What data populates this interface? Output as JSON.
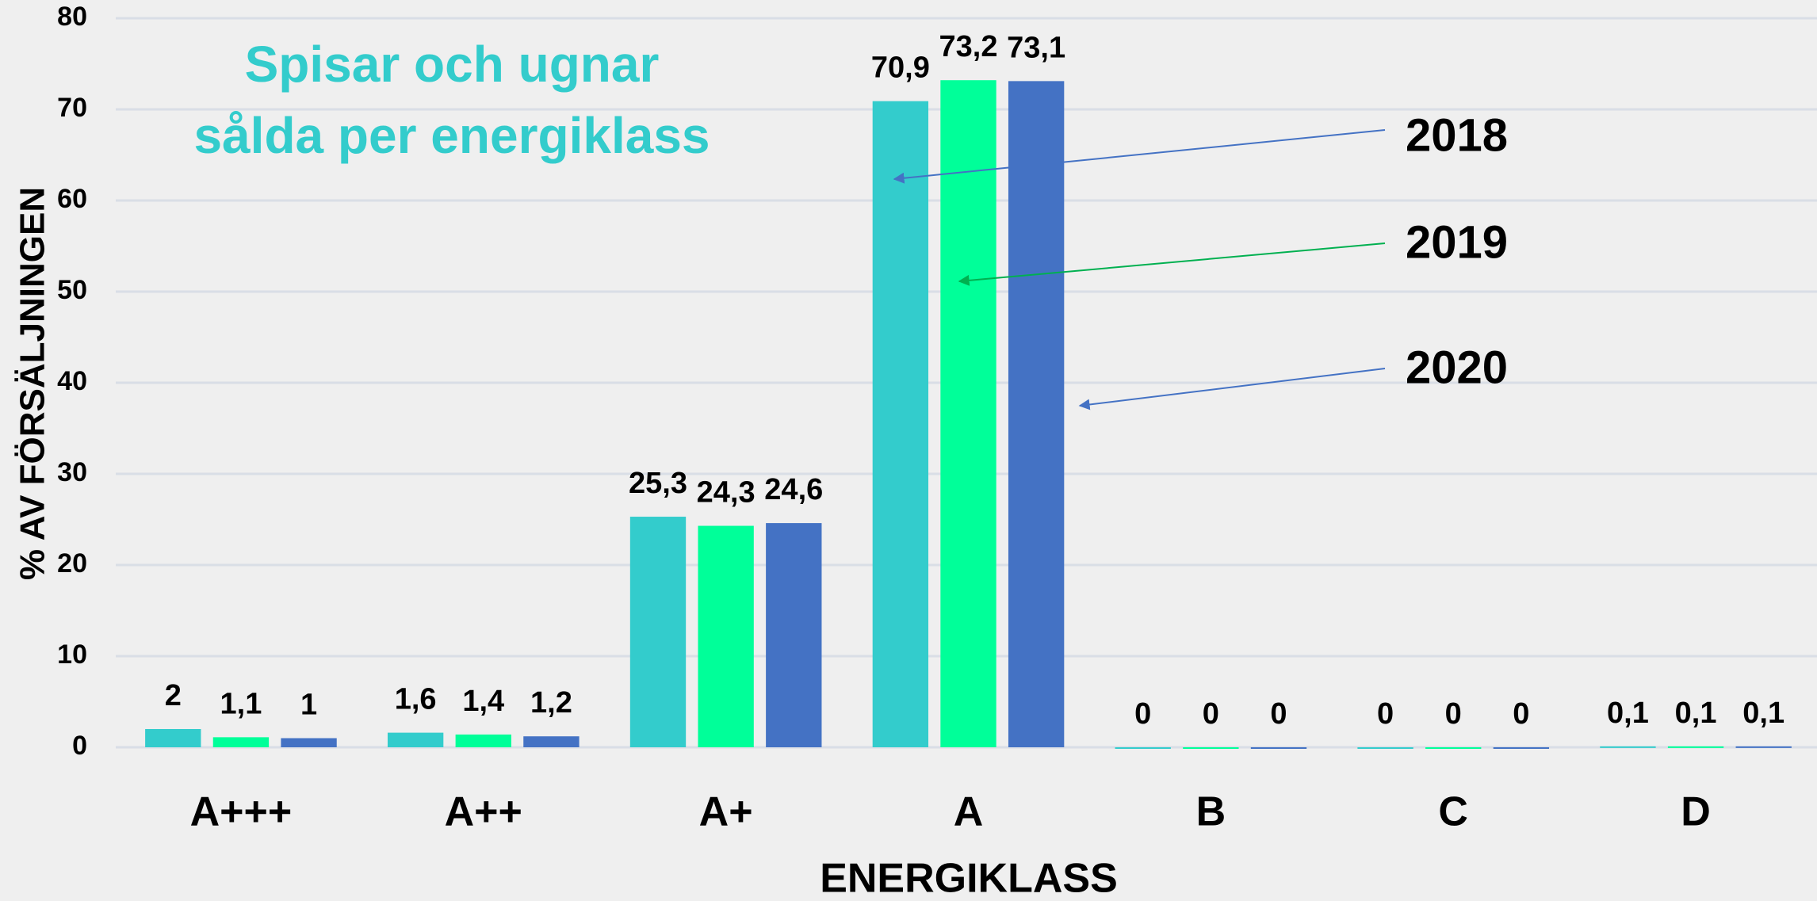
{
  "chart_data": {
    "type": "bar",
    "title": [
      "Spisar och ugnar",
      "sålda per energiklass"
    ],
    "xlabel": "ENERGIKLASS",
    "ylabel": "% AV FÖRSÄLJNINGEN",
    "categories": [
      "A+++",
      "A++",
      "A+",
      "A",
      "B",
      "C",
      "D"
    ],
    "series": [
      {
        "name": "2018",
        "color": "#33cccc",
        "values": [
          2,
          1.6,
          25.3,
          70.9,
          0,
          0,
          0.1
        ],
        "value_labels": [
          "2",
          "1,6",
          "25,3",
          "70,9",
          "0",
          "0",
          "0,1"
        ]
      },
      {
        "name": "2019",
        "color": "#00ff99",
        "values": [
          1.1,
          1.4,
          24.3,
          73.2,
          0,
          0,
          0.1
        ],
        "value_labels": [
          "1,1",
          "1,4",
          "24,3",
          "73,2",
          "0",
          "0",
          "0,1"
        ]
      },
      {
        "name": "2020",
        "color": "#4472c4",
        "values": [
          1,
          1.2,
          24.6,
          73.1,
          0,
          0,
          0.1
        ],
        "value_labels": [
          "1",
          "1,2",
          "24,6",
          "73,1",
          "0",
          "0",
          "0,1"
        ]
      }
    ],
    "ylim": [
      0,
      80
    ],
    "yticks": [
      0,
      10,
      20,
      30,
      40,
      50,
      60,
      70,
      80
    ],
    "grid": true
  }
}
